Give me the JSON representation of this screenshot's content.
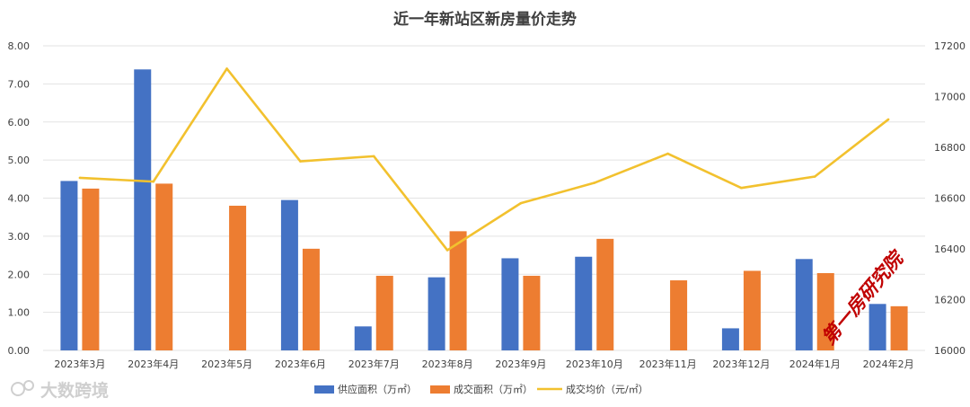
{
  "chart_data": {
    "type": "bar",
    "title": "近一年新站区新房量价走势",
    "categories": [
      "2023年3月",
      "2023年4月",
      "2023年5月",
      "2023年6月",
      "2023年7月",
      "2023年8月",
      "2023年9月",
      "2023年10月",
      "2023年11月",
      "2023年12月",
      "2024年1月",
      "2024年2月"
    ],
    "series": [
      {
        "name": "供应面积（万㎡）",
        "type": "bar",
        "axis": "left",
        "color": "#4472c4",
        "values": [
          4.45,
          7.38,
          null,
          3.95,
          0.63,
          1.92,
          2.42,
          2.46,
          null,
          0.58,
          2.4,
          1.22
        ]
      },
      {
        "name": "成交面积（万㎡）",
        "type": "bar",
        "axis": "left",
        "color": "#ed7d31",
        "values": [
          4.25,
          4.38,
          3.8,
          2.67,
          1.96,
          3.13,
          1.96,
          2.93,
          1.84,
          2.09,
          2.03,
          1.16
        ]
      },
      {
        "name": "成交均价（元/㎡）",
        "type": "line",
        "axis": "right",
        "color": "#f2c12e",
        "values": [
          16680,
          16665,
          17110,
          16745,
          16765,
          16395,
          16580,
          16660,
          16775,
          16640,
          16685,
          16910
        ]
      }
    ],
    "y_left": {
      "min": 0,
      "max": 8,
      "ticks": [
        "0.00",
        "1.00",
        "2.00",
        "3.00",
        "4.00",
        "5.00",
        "6.00",
        "7.00",
        "8.00"
      ]
    },
    "y_right": {
      "min": 16000,
      "max": 17200,
      "ticks": [
        "16000",
        "16200",
        "16400",
        "16600",
        "16800",
        "17000",
        "17200"
      ]
    },
    "grid": true,
    "legend_position": "bottom"
  },
  "watermark": "第一房研究院",
  "brand": "大数跨境"
}
